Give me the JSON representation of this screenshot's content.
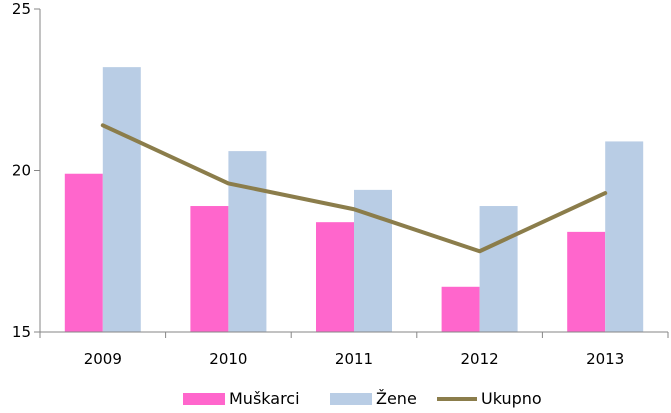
{
  "chart_data": {
    "type": "bar",
    "categories": [
      "2009",
      "2010",
      "2011",
      "2012",
      "2013"
    ],
    "series": [
      {
        "name": "Muškarci",
        "type": "bar",
        "color": "#ff66cc",
        "values": [
          19.9,
          18.9,
          18.4,
          16.4,
          18.1
        ]
      },
      {
        "name": "Žene",
        "type": "bar",
        "color": "#b9cde5",
        "values": [
          23.2,
          20.6,
          19.4,
          18.9,
          20.9
        ]
      },
      {
        "name": "Ukupno",
        "type": "line",
        "color": "#8b7d4b",
        "values": [
          21.4,
          19.6,
          18.8,
          17.5,
          19.3
        ]
      }
    ],
    "ylim": [
      15,
      25
    ],
    "yticks": [
      "15",
      "20",
      "25"
    ],
    "grid": false,
    "legend_position": "bottom"
  }
}
